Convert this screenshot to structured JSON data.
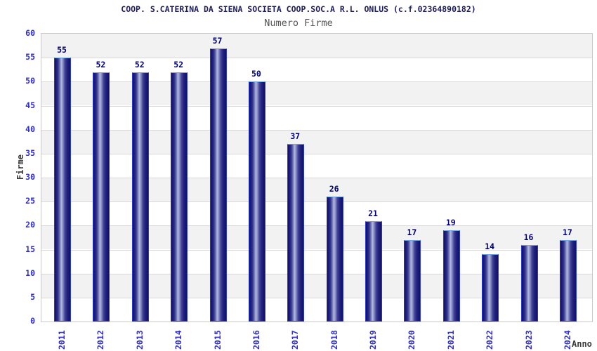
{
  "chart_data": {
    "type": "bar",
    "title": "COOP. S.CATERINA DA SIENA SOCIETA COOP.SOC.A R.L. ONLUS (c.f.02364890182)",
    "subtitle": "Numero Firme",
    "xlabel": "Anno",
    "ylabel": "Firme",
    "categories": [
      "2011",
      "2012",
      "2013",
      "2014",
      "2015",
      "2016",
      "2017",
      "2018",
      "2019",
      "2020",
      "2021",
      "2022",
      "2023",
      "2024"
    ],
    "values": [
      55,
      52,
      52,
      52,
      57,
      50,
      37,
      26,
      21,
      17,
      19,
      14,
      16,
      17
    ],
    "ylim": [
      0,
      60
    ],
    "ytick_step": 5,
    "legend": "none",
    "grid": "horizontal-bands",
    "colors": {
      "title": "#1c1c5e",
      "subtitle": "#545454",
      "tick_label": "#2e2ed4",
      "value_label": "#00007d",
      "axis_title": "#3a3a3a",
      "band_gray": "#f2f2f2",
      "band_white": "#ffffff",
      "gridline": "#d9d9d9",
      "plot_border": "#c9c9c9",
      "bar_dark": "#10106a",
      "bar_mid": "#30308a",
      "bar_highlight": "#b2b8de",
      "bar_border": "#2b3bd0",
      "bar_border_top": "#6fa3e8"
    }
  }
}
